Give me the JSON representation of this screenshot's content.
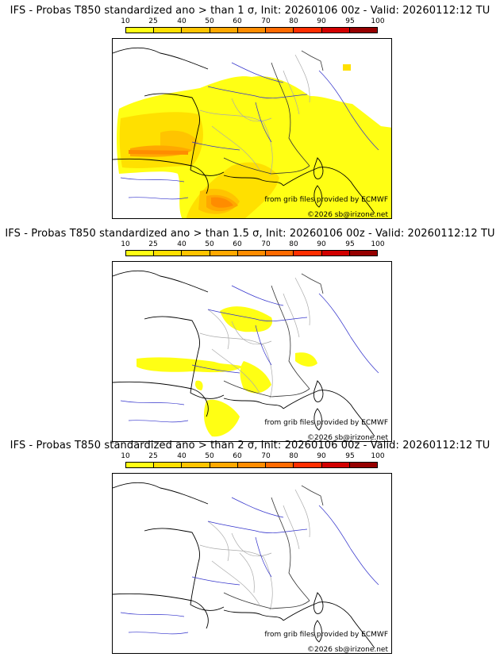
{
  "legend": {
    "labels": [
      "10",
      "25",
      "40",
      "50",
      "60",
      "70",
      "80",
      "90",
      "95",
      "100"
    ],
    "colors": [
      "#ffff14",
      "#ffe000",
      "#ffc400",
      "#ffa800",
      "#ff8c00",
      "#ff6a00",
      "#ff2e00",
      "#d20000",
      "#960000",
      "#5a0000"
    ]
  },
  "panels": [
    {
      "title": "IFS - Probas T850  standardized ano > than 1 σ, Init: 20260106 00z - Valid: 20260112:12 TU"
    },
    {
      "title": "IFS - Probas T850  standardized ano > than 1.5 σ, Init: 20260106 00z - Valid: 20260112:12 TU"
    },
    {
      "title": "IFS - Probas T850  standardized ano > than 2 σ, Init: 20260106 00z - Valid: 20260112:12 TU"
    }
  ],
  "credits": {
    "source": "from grib files provided by ECMWF",
    "copyright": "©2026 sb@irizone.net"
  }
}
